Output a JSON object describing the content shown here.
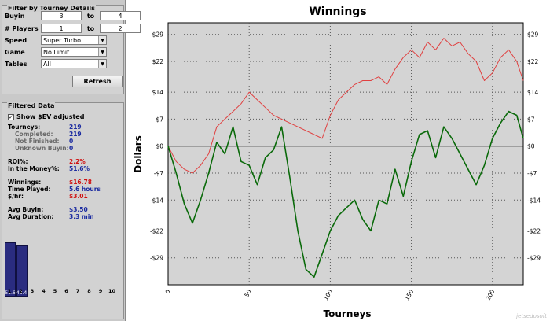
{
  "filter": {
    "title": "Filter by Tourney Details",
    "buyin": {
      "label": "Buyin",
      "from": "3",
      "to_label": "to",
      "to": "4"
    },
    "players": {
      "label": "# Players",
      "from": "1",
      "to_label": "to",
      "to": "2"
    },
    "speed": {
      "label": "Speed",
      "value": "Super Turbo"
    },
    "game": {
      "label": "Game",
      "value": "No Limit"
    },
    "tables": {
      "label": "Tables",
      "value": "All"
    },
    "refresh_label": "Refresh"
  },
  "filtered": {
    "title": "Filtered Data",
    "show_sev_label": "Show $EV adjusted",
    "show_sev_checked": "✓",
    "tourneys": {
      "label": "Tourneys:",
      "value": "219"
    },
    "completed": {
      "label": "Completed:",
      "value": "219"
    },
    "not_finished": {
      "label": "Not Finished:",
      "value": "0"
    },
    "unknown_buyin": {
      "label": "Unknown Buyin:",
      "value": "0"
    },
    "roi": {
      "label": "ROI%:",
      "value": "2.2%"
    },
    "itm": {
      "label": "In the Money%:",
      "value": "51.6%"
    },
    "winnings": {
      "label": "Winnings:",
      "value": "$16.78"
    },
    "time_played": {
      "label": "Time Played:",
      "value": "5.6 hours"
    },
    "per_hour": {
      "label": "$/hr:",
      "value": "$3.01"
    },
    "avg_buyin": {
      "label": "Avg Buyin:",
      "value": "$3.50"
    },
    "avg_duration": {
      "label": "Avg Duration:",
      "value": "3.3 min"
    }
  },
  "mini_chart": {
    "bars": [
      {
        "pos": "1",
        "value": 51.6,
        "label": "51.6"
      },
      {
        "pos": "2",
        "value": 48.4,
        "label": "48.4"
      }
    ],
    "ticks": [
      "1",
      "2",
      "3",
      "4",
      "5",
      "6",
      "7",
      "8",
      "9",
      "10"
    ],
    "max": 70
  },
  "watermark": "jetsedosoft",
  "chart_data": {
    "type": "line",
    "title": "Winnings",
    "xlabel": "Tourneys",
    "ylabel": "Dollars",
    "xlim": [
      0,
      219
    ],
    "ylim": [
      -36,
      32
    ],
    "x_ticks": [
      0,
      50,
      100,
      150,
      200
    ],
    "y_ticks": [
      29,
      22,
      14,
      7,
      0,
      -7,
      -14,
      -22,
      -29
    ],
    "y_tick_labels": [
      "$29",
      "$22",
      "$14",
      "$7",
      "$0",
      "-$7",
      "-$14",
      "-$22",
      "-$29"
    ],
    "grid": true,
    "colors": {
      "sev": "#e04040",
      "actual": "#0a6a0a",
      "plot_bg": "#d4d4d4"
    },
    "series": [
      {
        "key": "sev",
        "x": [
          0,
          5,
          10,
          15,
          20,
          25,
          30,
          35,
          40,
          45,
          50,
          55,
          60,
          65,
          70,
          75,
          80,
          85,
          90,
          95,
          100,
          105,
          110,
          115,
          120,
          125,
          130,
          135,
          140,
          145,
          150,
          155,
          160,
          165,
          170,
          175,
          180,
          185,
          190,
          195,
          200,
          205,
          210,
          215,
          219
        ],
        "values": [
          0,
          -4,
          -6,
          -7,
          -5,
          -2,
          5,
          7,
          9,
          11,
          14,
          12,
          10,
          8,
          7,
          6,
          5,
          4,
          3,
          2,
          8,
          12,
          14,
          16,
          17,
          17,
          18,
          16,
          20,
          23,
          25,
          23,
          27,
          25,
          28,
          26,
          27,
          24,
          22,
          17,
          19,
          23,
          25,
          22,
          17
        ]
      },
      {
        "key": "actual",
        "x": [
          0,
          5,
          10,
          15,
          20,
          25,
          30,
          35,
          40,
          45,
          50,
          55,
          60,
          65,
          70,
          75,
          80,
          85,
          90,
          95,
          100,
          105,
          110,
          115,
          120,
          125,
          130,
          135,
          140,
          145,
          150,
          155,
          160,
          165,
          170,
          175,
          180,
          185,
          190,
          195,
          200,
          205,
          210,
          215,
          219
        ],
        "values": [
          0,
          -7,
          -15,
          -20,
          -14,
          -7,
          1,
          -2,
          5,
          -4,
          -5,
          -10,
          -3,
          -1,
          5,
          -8,
          -22,
          -32,
          -34,
          -28,
          -22,
          -18,
          -16,
          -14,
          -19,
          -22,
          -14,
          -15,
          -6,
          -13,
          -4,
          3,
          4,
          -3,
          5,
          2,
          -2,
          -6,
          -10,
          -5,
          2,
          6,
          9,
          8,
          2
        ]
      }
    ]
  }
}
